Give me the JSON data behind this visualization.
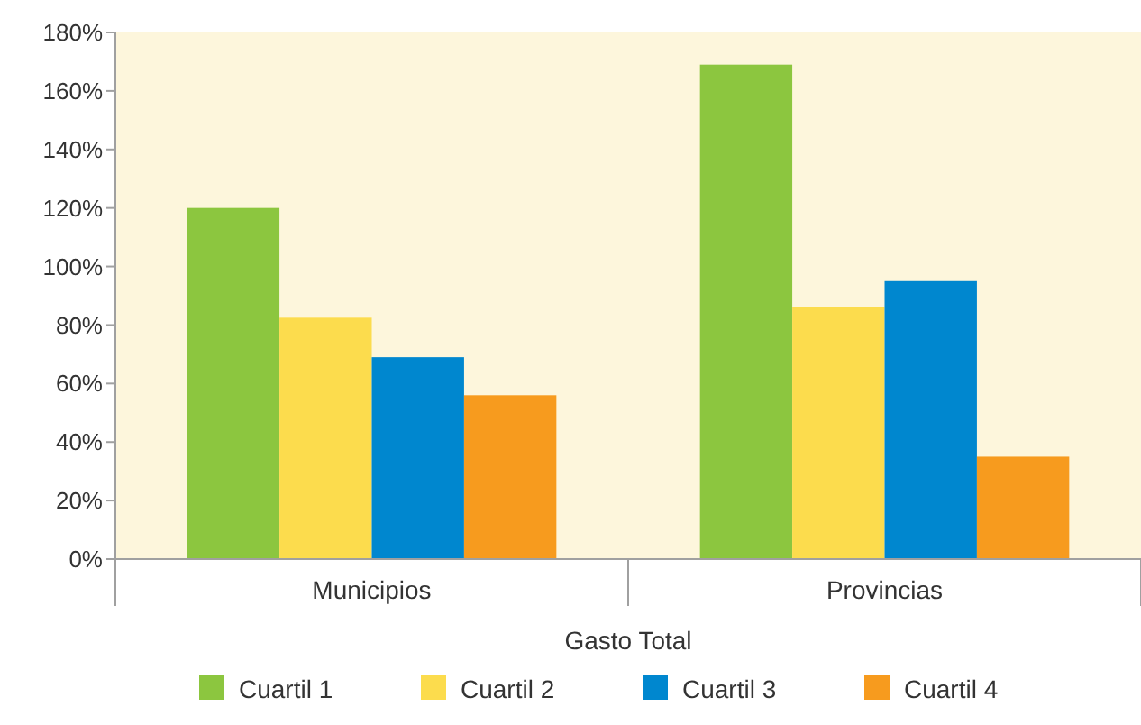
{
  "chart_data": {
    "type": "bar",
    "xlabel": "Gasto Total",
    "categories": [
      "Municipios",
      "Provincias"
    ],
    "series": [
      {
        "name": "Cuartil 1",
        "color": "#8cc63f",
        "values": [
          120,
          169
        ]
      },
      {
        "name": "Cuartil 2",
        "color": "#fcdc4d",
        "values": [
          82.5,
          86
        ]
      },
      {
        "name": "Cuartil 3",
        "color": "#0087cf",
        "values": [
          69,
          95
        ]
      },
      {
        "name": "Cuartil 4",
        "color": "#f79b1e",
        "values": [
          56,
          35
        ]
      }
    ],
    "ylim": [
      0,
      180
    ],
    "yticks": [
      {
        "value": 0,
        "label": "0%"
      },
      {
        "value": 20,
        "label": "20%"
      },
      {
        "value": 40,
        "label": "40%"
      },
      {
        "value": 60,
        "label": "60%"
      },
      {
        "value": 80,
        "label": "80%"
      },
      {
        "value": 100,
        "label": "100%"
      },
      {
        "value": 120,
        "label": "120%"
      },
      {
        "value": 140,
        "label": "140%"
      },
      {
        "value": 160,
        "label": "160%"
      },
      {
        "value": 180,
        "label": "180%"
      }
    ],
    "grid": false,
    "legend": "bottom"
  }
}
